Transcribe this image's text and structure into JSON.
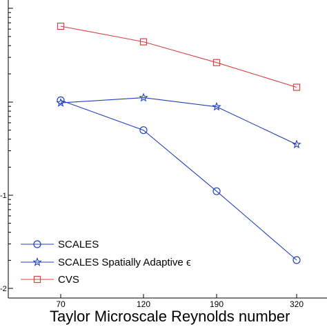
{
  "chart_data": {
    "type": "line",
    "categories": [
      "70",
      "120",
      "190",
      "320"
    ],
    "xlabel": "Taylor Microscale Reynolds number",
    "y_tick_labels": [
      "",
      "",
      "-1",
      "-2"
    ],
    "ylim": [
      0,
      1
    ],
    "grid": false,
    "legend_position": "bottom-left",
    "series": [
      {
        "name": "SCALES",
        "marker": "circle",
        "color": "#1f3fbf",
        "values": [
          0.715,
          0.6,
          0.365,
          0.1
        ]
      },
      {
        "name": "SCALES Spatially Adaptive ϵ",
        "marker": "star",
        "color": "#1f3fbf",
        "values": [
          0.705,
          0.725,
          0.69,
          0.545
        ]
      },
      {
        "name": "CVS",
        "marker": "square",
        "color": "#d94040",
        "values": [
          1.0,
          0.94,
          0.86,
          0.765
        ]
      }
    ]
  }
}
